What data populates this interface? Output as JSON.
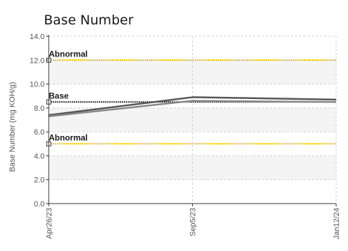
{
  "chart_data": {
    "type": "line",
    "title": "Base Number",
    "xlabel": "",
    "ylabel": "Base Number (mg KOH/g)",
    "x_categories": [
      "Apr26/23",
      "Sep5/23",
      "Jan12/24"
    ],
    "ylim": [
      0,
      14
    ],
    "yticks": [
      "0.0",
      "2.0",
      "4.0",
      "6.0",
      "8.0",
      "10.0",
      "12.0",
      "14.0"
    ],
    "grid": true,
    "series": [
      {
        "values": [
          7.4,
          8.9,
          8.7
        ],
        "color": "#555555"
      },
      {
        "values": [
          7.3,
          8.6,
          8.5
        ],
        "color": "#888888"
      }
    ],
    "reference_lines": [
      {
        "label": "Abnormal",
        "value": 12.0,
        "color": "#f2c200"
      },
      {
        "label": "Base",
        "value": 8.5,
        "color": "#333333"
      },
      {
        "label": "Abnormal",
        "value": 5.0,
        "color": "#f2c200"
      }
    ],
    "band_color": "#f4f4f4"
  }
}
